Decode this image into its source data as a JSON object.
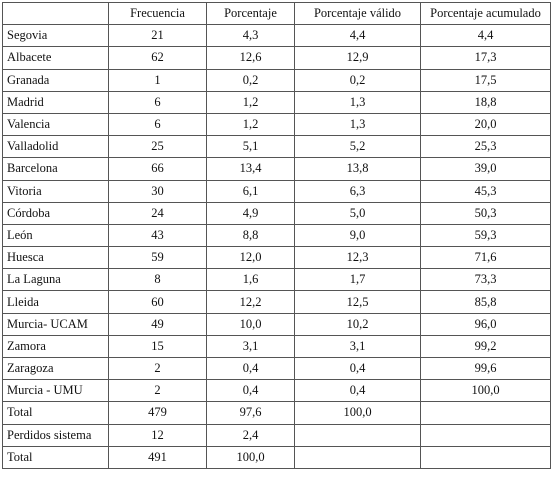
{
  "table": {
    "headers": [
      "",
      "Frecuencia",
      "Porcentaje",
      "Porcentaje válido",
      "Porcentaje acumulado"
    ],
    "rows": [
      [
        "Segovia",
        "21",
        "4,3",
        "4,4",
        "4,4"
      ],
      [
        "Albacete",
        "62",
        "12,6",
        "12,9",
        "17,3"
      ],
      [
        "Granada",
        "1",
        "0,2",
        "0,2",
        "17,5"
      ],
      [
        "Madrid",
        "6",
        "1,2",
        "1,3",
        "18,8"
      ],
      [
        "Valencia",
        "6",
        "1,2",
        "1,3",
        "20,0"
      ],
      [
        "Valladolid",
        "25",
        "5,1",
        "5,2",
        "25,3"
      ],
      [
        "Barcelona",
        "66",
        "13,4",
        "13,8",
        "39,0"
      ],
      [
        "Vitoria",
        "30",
        "6,1",
        "6,3",
        "45,3"
      ],
      [
        "Córdoba",
        "24",
        "4,9",
        "5,0",
        "50,3"
      ],
      [
        "León",
        "43",
        "8,8",
        "9,0",
        "59,3"
      ],
      [
        "Huesca",
        "59",
        "12,0",
        "12,3",
        "71,6"
      ],
      [
        "La Laguna",
        "8",
        "1,6",
        "1,7",
        "73,3"
      ],
      [
        "Lleida",
        "60",
        "12,2",
        "12,5",
        "85,8"
      ],
      [
        "Murcia- UCAM",
        "49",
        "10,0",
        "10,2",
        "96,0"
      ],
      [
        "Zamora",
        "15",
        "3,1",
        "3,1",
        "99,2"
      ],
      [
        "Zaragoza",
        "2",
        "0,4",
        "0,4",
        "99,6"
      ],
      [
        "Murcia - UMU",
        "2",
        "0,4",
        "0,4",
        "100,0"
      ],
      [
        "Total",
        "479",
        "97,6",
        "100,0",
        ""
      ],
      [
        "Perdidos sistema",
        "12",
        "2,4",
        "",
        ""
      ],
      [
        "Total",
        "491",
        "100,0",
        "",
        ""
      ]
    ]
  }
}
